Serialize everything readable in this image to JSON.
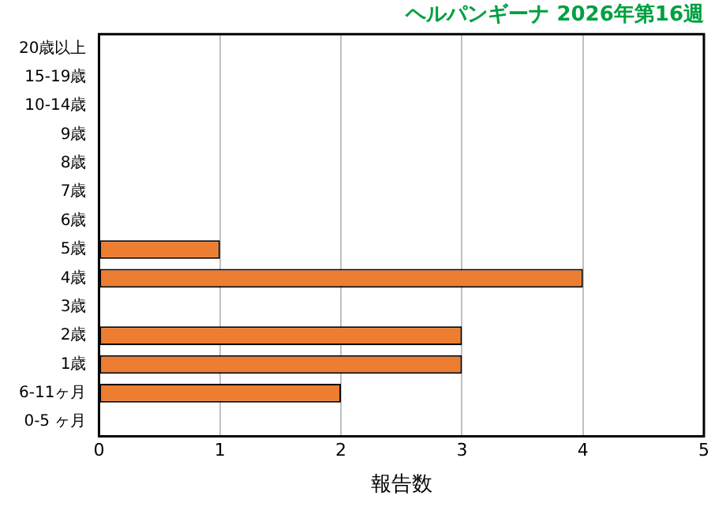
{
  "chart_data": {
    "type": "bar",
    "orientation": "horizontal",
    "title": "ヘルパンギーナ 2026年第16週",
    "xlabel": "報告数",
    "categories": [
      "20歳以上",
      "15-19歳",
      "10-14歳",
      "9歳",
      "8歳",
      "7歳",
      "6歳",
      "5歳",
      "4歳",
      "3歳",
      "2歳",
      "1歳",
      "6-11ヶ月",
      "0-5 ヶ月"
    ],
    "values": [
      0,
      0,
      0,
      0,
      0,
      0,
      0,
      1,
      4,
      0,
      3,
      3,
      2,
      0
    ],
    "color": "#ed7d31",
    "xlim": [
      0,
      5
    ],
    "xticks": [
      0,
      1,
      2,
      3,
      4,
      5
    ],
    "grid": "x",
    "legend": false
  }
}
